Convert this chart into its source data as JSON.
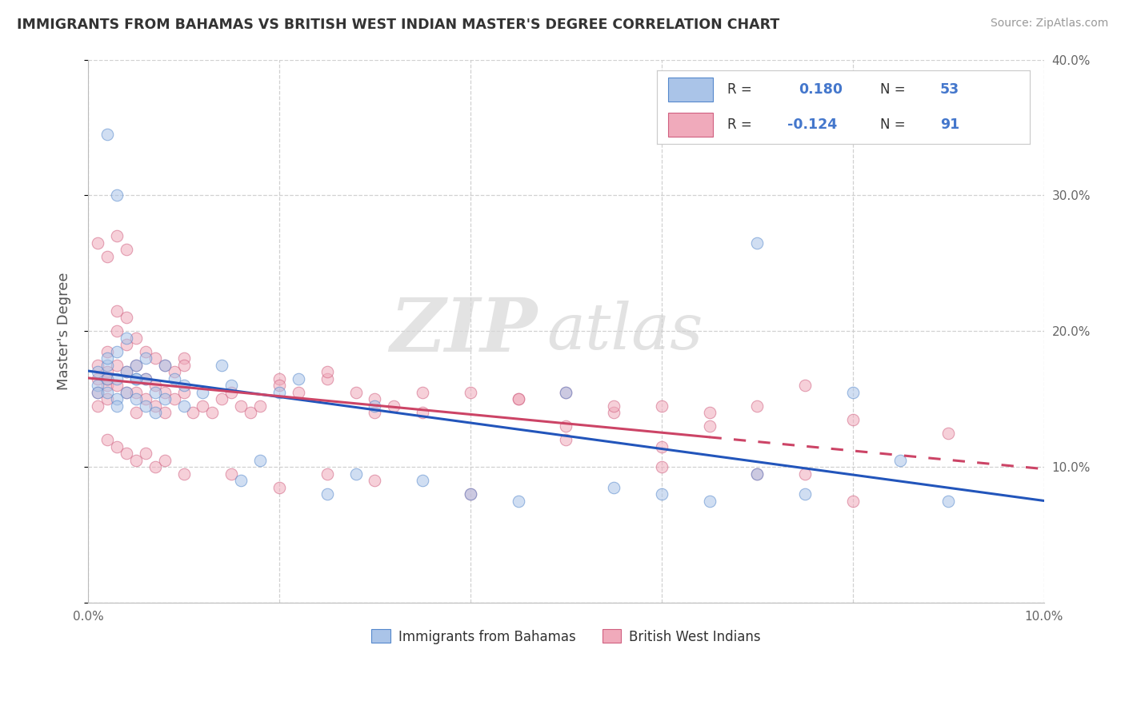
{
  "title": "IMMIGRANTS FROM BAHAMAS VS BRITISH WEST INDIAN MASTER'S DEGREE CORRELATION CHART",
  "source": "Source: ZipAtlas.com",
  "ylabel": "Master's Degree",
  "xlim": [
    0.0,
    0.1
  ],
  "ylim": [
    0.0,
    0.4
  ],
  "xticks": [
    0.0,
    0.02,
    0.04,
    0.06,
    0.08,
    0.1
  ],
  "yticks": [
    0.0,
    0.1,
    0.2,
    0.3,
    0.4
  ],
  "legend_entries": [
    {
      "label": "Immigrants from Bahamas",
      "color": "#aac4e8",
      "edge": "#5588cc",
      "R": "0.180",
      "N": "53"
    },
    {
      "label": "British West Indians",
      "color": "#f0aabb",
      "edge": "#d06080",
      "R": "-0.124",
      "N": "91"
    }
  ],
  "blue_scatter_x": [
    0.001,
    0.001,
    0.001,
    0.002,
    0.002,
    0.002,
    0.002,
    0.003,
    0.003,
    0.003,
    0.003,
    0.004,
    0.004,
    0.004,
    0.005,
    0.005,
    0.005,
    0.006,
    0.006,
    0.006,
    0.007,
    0.007,
    0.008,
    0.008,
    0.009,
    0.01,
    0.01,
    0.012,
    0.014,
    0.015,
    0.016,
    0.018,
    0.02,
    0.022,
    0.025,
    0.028,
    0.03,
    0.035,
    0.04,
    0.045,
    0.05,
    0.055,
    0.06,
    0.065,
    0.07,
    0.075,
    0.08,
    0.085,
    0.09,
    0.002,
    0.003,
    0.005,
    0.07
  ],
  "blue_scatter_y": [
    0.17,
    0.16,
    0.155,
    0.175,
    0.165,
    0.18,
    0.155,
    0.185,
    0.165,
    0.15,
    0.145,
    0.195,
    0.17,
    0.155,
    0.175,
    0.15,
    0.165,
    0.18,
    0.165,
    0.145,
    0.155,
    0.14,
    0.175,
    0.15,
    0.165,
    0.16,
    0.145,
    0.155,
    0.175,
    0.16,
    0.09,
    0.105,
    0.155,
    0.165,
    0.08,
    0.095,
    0.145,
    0.09,
    0.08,
    0.075,
    0.155,
    0.085,
    0.08,
    0.075,
    0.095,
    0.08,
    0.155,
    0.105,
    0.075,
    0.345,
    0.3,
    0.165,
    0.265
  ],
  "pink_scatter_x": [
    0.001,
    0.001,
    0.001,
    0.001,
    0.002,
    0.002,
    0.002,
    0.002,
    0.002,
    0.003,
    0.003,
    0.003,
    0.003,
    0.004,
    0.004,
    0.004,
    0.004,
    0.005,
    0.005,
    0.005,
    0.005,
    0.006,
    0.006,
    0.006,
    0.007,
    0.007,
    0.007,
    0.008,
    0.008,
    0.008,
    0.009,
    0.009,
    0.01,
    0.01,
    0.011,
    0.012,
    0.013,
    0.014,
    0.015,
    0.016,
    0.017,
    0.018,
    0.02,
    0.022,
    0.025,
    0.028,
    0.03,
    0.032,
    0.035,
    0.04,
    0.045,
    0.05,
    0.055,
    0.06,
    0.065,
    0.07,
    0.075,
    0.08,
    0.09,
    0.001,
    0.002,
    0.002,
    0.003,
    0.003,
    0.004,
    0.004,
    0.005,
    0.006,
    0.007,
    0.008,
    0.01,
    0.015,
    0.02,
    0.025,
    0.03,
    0.04,
    0.05,
    0.06,
    0.07,
    0.08,
    0.025,
    0.035,
    0.045,
    0.055,
    0.065,
    0.075,
    0.01,
    0.02,
    0.03,
    0.05,
    0.06
  ],
  "pink_scatter_y": [
    0.175,
    0.165,
    0.155,
    0.145,
    0.185,
    0.17,
    0.16,
    0.15,
    0.165,
    0.215,
    0.2,
    0.175,
    0.16,
    0.21,
    0.19,
    0.17,
    0.155,
    0.195,
    0.175,
    0.155,
    0.14,
    0.185,
    0.165,
    0.15,
    0.18,
    0.16,
    0.145,
    0.175,
    0.155,
    0.14,
    0.17,
    0.15,
    0.18,
    0.155,
    0.14,
    0.145,
    0.14,
    0.15,
    0.155,
    0.145,
    0.14,
    0.145,
    0.165,
    0.155,
    0.165,
    0.155,
    0.15,
    0.145,
    0.14,
    0.155,
    0.15,
    0.12,
    0.14,
    0.115,
    0.13,
    0.145,
    0.095,
    0.135,
    0.125,
    0.265,
    0.255,
    0.12,
    0.27,
    0.115,
    0.26,
    0.11,
    0.105,
    0.11,
    0.1,
    0.105,
    0.095,
    0.095,
    0.085,
    0.095,
    0.09,
    0.08,
    0.13,
    0.1,
    0.095,
    0.075,
    0.17,
    0.155,
    0.15,
    0.145,
    0.14,
    0.16,
    0.175,
    0.16,
    0.14,
    0.155,
    0.145
  ],
  "watermark_text": "ZIP",
  "watermark_text2": "atlas",
  "blue_line_color": "#2255bb",
  "pink_line_color": "#cc4466",
  "grid_color": "#cccccc",
  "bg_color": "#ffffff",
  "scatter_alpha": 0.55,
  "scatter_size": 110,
  "legend_text_color": "#4477cc",
  "title_color": "#333333",
  "source_color": "#999999"
}
